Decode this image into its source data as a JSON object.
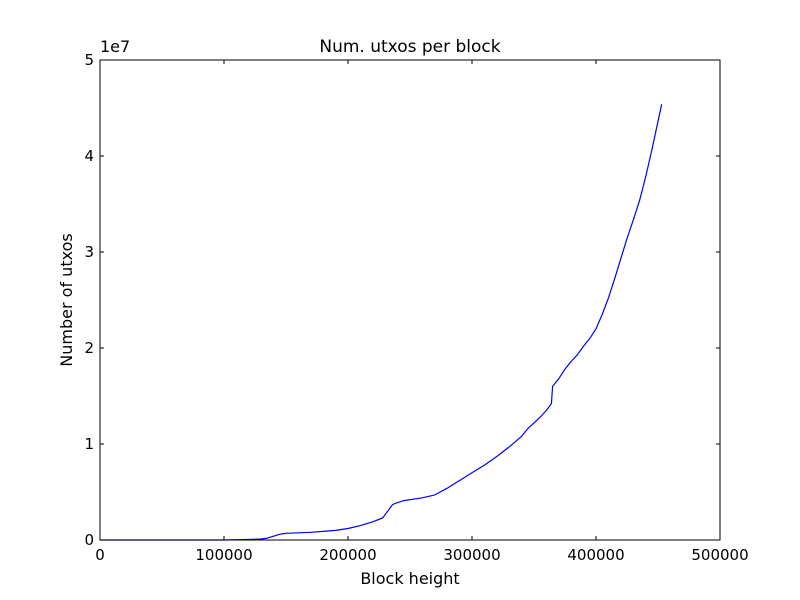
{
  "chart_data": {
    "type": "line",
    "title": "Num. utxos per block",
    "xlabel": "Block height",
    "ylabel": "Number of utxos",
    "y_offset_label": "1e7",
    "xlim": [
      0,
      500000
    ],
    "ylim": [
      0,
      5
    ],
    "y_scale_factor": 10000000,
    "xticks": [
      0,
      100000,
      200000,
      300000,
      400000,
      500000
    ],
    "xtick_labels": [
      "0",
      "100000",
      "200000",
      "300000",
      "400000",
      "500000"
    ],
    "yticks": [
      0,
      1,
      2,
      3,
      4,
      5
    ],
    "ytick_labels": [
      "0",
      "1",
      "2",
      "3",
      "4",
      "5"
    ],
    "grid": false,
    "line_color": "#0000ff",
    "series": [
      {
        "x": [
          0,
          50000,
          100000,
          120000,
          130000,
          135000,
          140000,
          145000,
          150000,
          160000,
          170000,
          180000,
          190000,
          200000,
          210000,
          220000,
          228000,
          232000,
          236000,
          240000,
          245000,
          250000,
          260000,
          270000,
          280000,
          290000,
          300000,
          310000,
          320000,
          330000,
          340000,
          345000,
          350000,
          355000,
          360000,
          364000,
          365000,
          370000,
          375000,
          380000,
          385000,
          390000,
          395000,
          400000,
          405000,
          410000,
          415000,
          420000,
          425000,
          430000,
          435000,
          440000,
          445000,
          450000,
          453000
        ],
        "y": [
          0.0,
          0.0,
          0.0,
          0.005,
          0.01,
          0.02,
          0.04,
          0.06,
          0.07,
          0.075,
          0.08,
          0.09,
          0.1,
          0.12,
          0.15,
          0.19,
          0.23,
          0.3,
          0.37,
          0.39,
          0.41,
          0.42,
          0.44,
          0.47,
          0.54,
          0.62,
          0.7,
          0.78,
          0.87,
          0.97,
          1.08,
          1.16,
          1.22,
          1.28,
          1.35,
          1.42,
          1.6,
          1.68,
          1.78,
          1.86,
          1.93,
          2.02,
          2.1,
          2.2,
          2.35,
          2.52,
          2.72,
          2.93,
          3.14,
          3.33,
          3.53,
          3.78,
          4.06,
          4.36,
          4.54
        ]
      }
    ]
  }
}
